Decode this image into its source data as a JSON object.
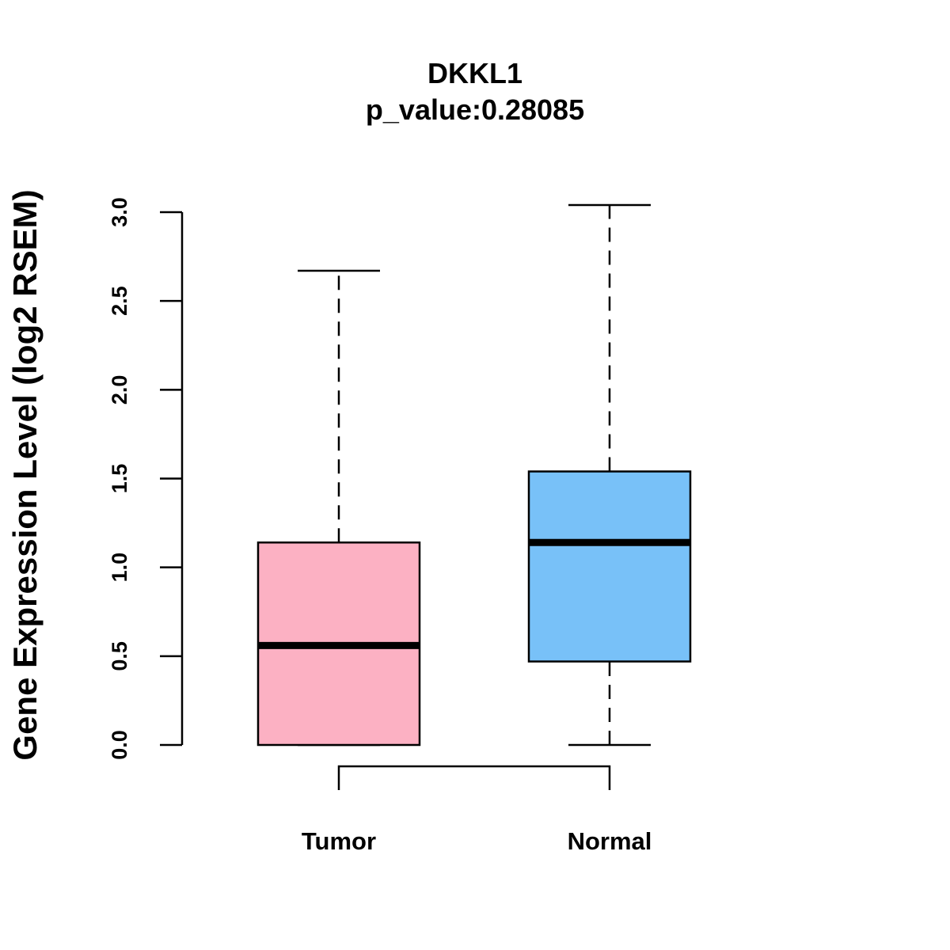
{
  "chart_data": {
    "type": "boxplot",
    "title": "DKKL1",
    "subtitle": "p_value:0.28085",
    "xlabel": "",
    "ylabel": "Gene Expression Level (log2 RSEM)",
    "ylim": [
      0,
      3
    ],
    "yticks": [
      "0.0",
      "0.5",
      "1.0",
      "1.5",
      "2.0",
      "2.5",
      "3.0"
    ],
    "yticks_values": [
      0,
      0.5,
      1.0,
      1.5,
      2.0,
      2.5,
      3.0
    ],
    "categories": [
      "Tumor",
      "Normal"
    ],
    "boxes": [
      {
        "name": "Tumor",
        "min": 0.0,
        "q1": 0.0,
        "median": 0.56,
        "q3": 1.14,
        "max": 2.67,
        "color": "#FCB1C3"
      },
      {
        "name": "Normal",
        "min": 0.0,
        "q1": 0.47,
        "median": 1.14,
        "q3": 1.54,
        "max": 3.04,
        "color": "#78C1F8"
      }
    ],
    "comparison_bracket": [
      "Tumor",
      "Normal"
    ],
    "grid": false
  }
}
